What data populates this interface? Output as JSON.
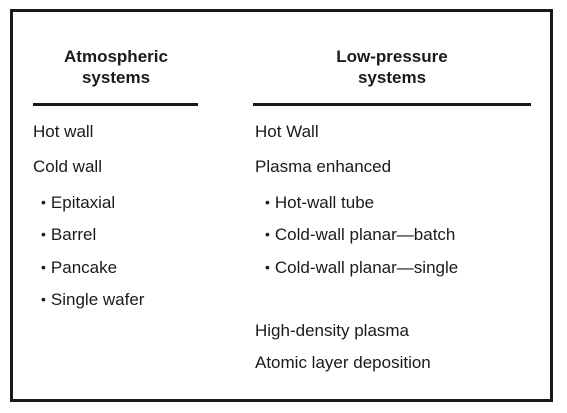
{
  "left": {
    "heading_line1": "Atmospheric",
    "heading_line2": "systems",
    "items": [
      {
        "text": "Hot wall",
        "bullet": false
      },
      {
        "text": "Cold wall",
        "bullet": false
      },
      {
        "text": "Epitaxial",
        "bullet": true
      },
      {
        "text": "Barrel",
        "bullet": true
      },
      {
        "text": "Pancake",
        "bullet": true
      },
      {
        "text": "Single wafer",
        "bullet": true
      }
    ]
  },
  "right": {
    "heading_line1": "Low-pressure",
    "heading_line2": "systems",
    "items": [
      {
        "text": "Hot Wall",
        "bullet": false
      },
      {
        "text": "Plasma enhanced",
        "bullet": false
      },
      {
        "text": "Hot-wall tube",
        "bullet": true
      },
      {
        "text": "Cold-wall planar—batch",
        "bullet": true
      },
      {
        "text": "Cold-wall planar—single",
        "bullet": true
      },
      {
        "text": "High-density plasma",
        "bullet": false
      },
      {
        "text": "Atomic layer deposition",
        "bullet": false
      }
    ]
  },
  "bullet_glyph": "•"
}
